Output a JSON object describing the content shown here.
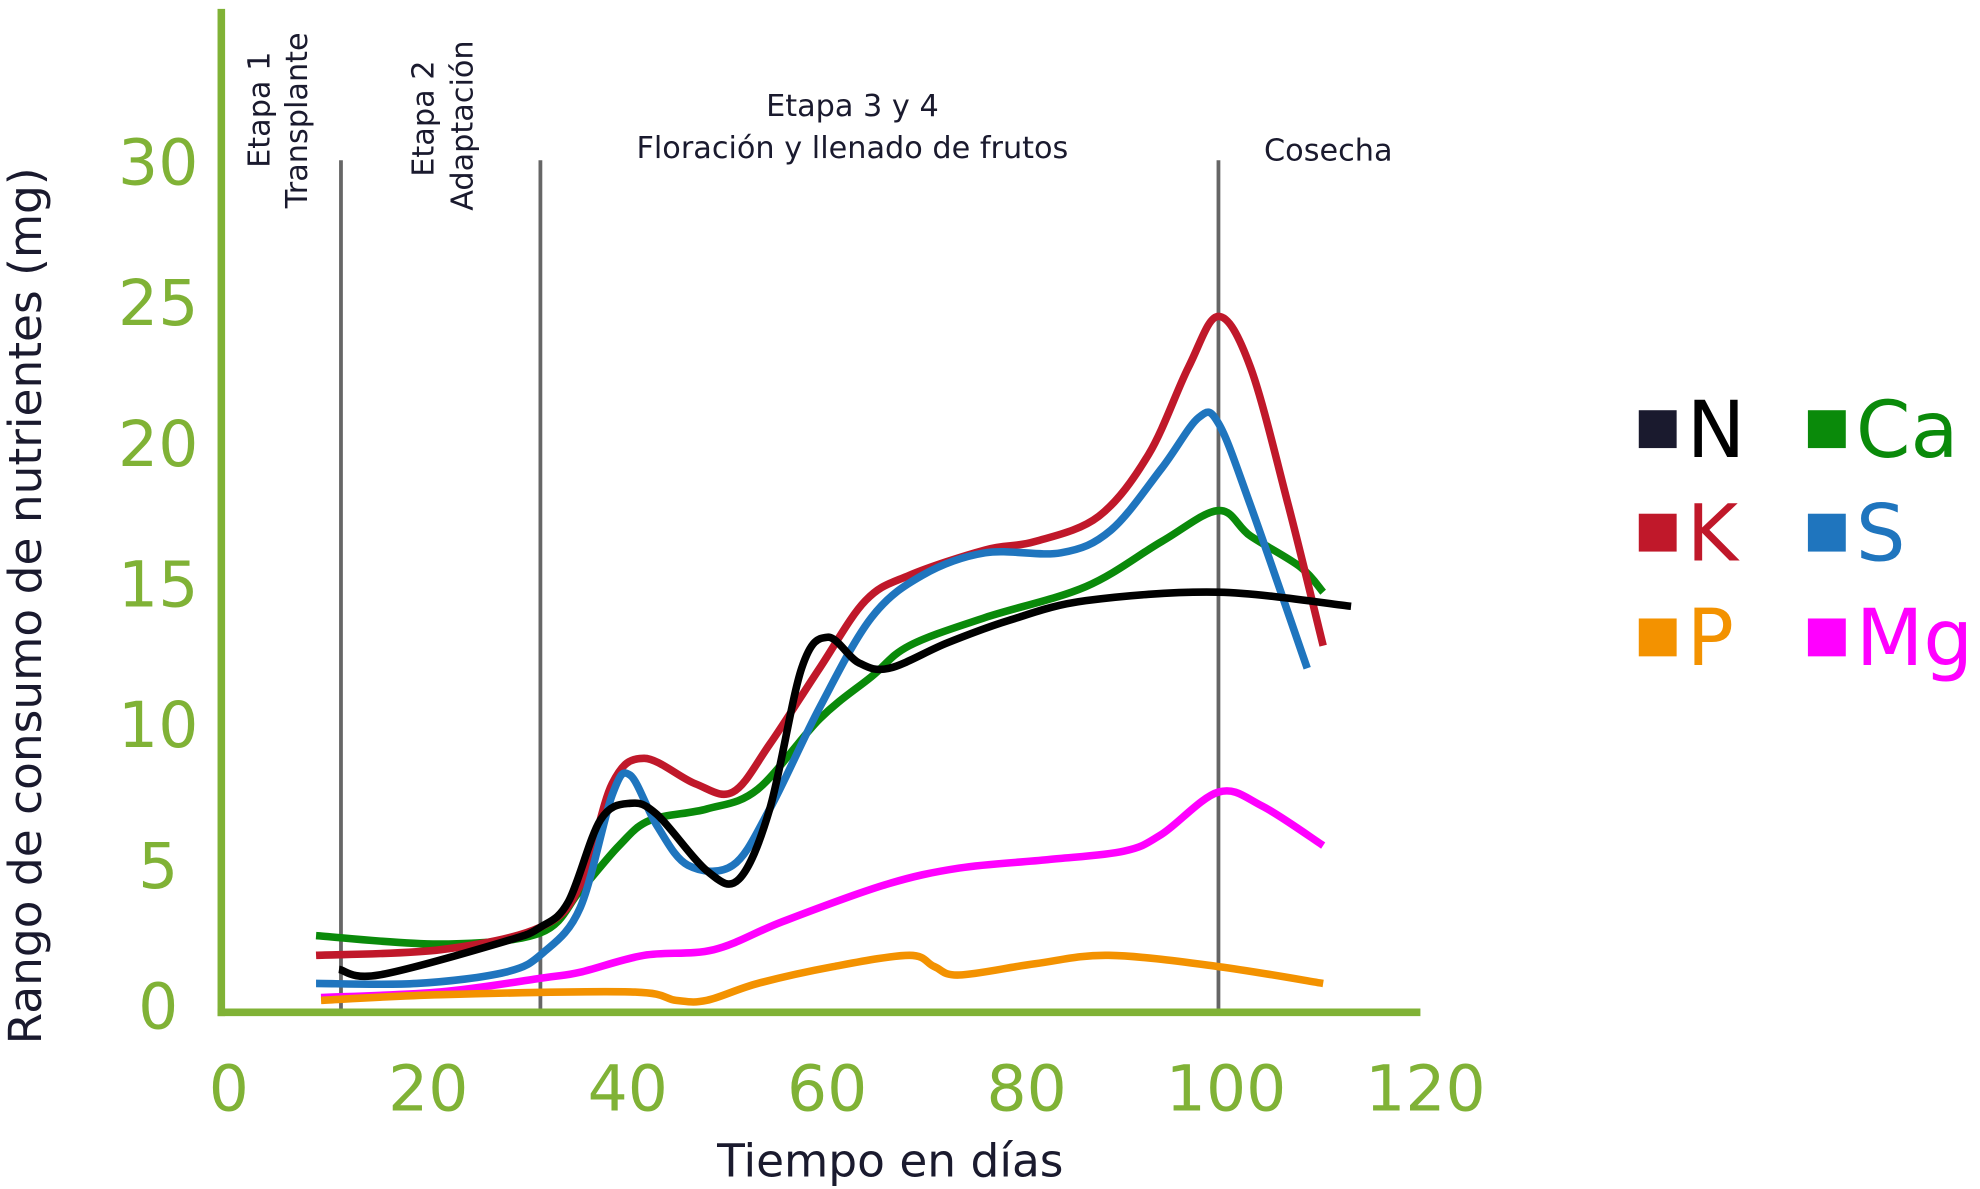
{
  "chart_data": {
    "type": "line",
    "xlabel": "Tiempo en días",
    "ylabel": "Rango de consumo de nutrientes (mg)",
    "xlim": [
      0,
      120
    ],
    "ylim": [
      0,
      30
    ],
    "x_ticks": [
      "0",
      "20",
      "40",
      "60",
      "80",
      "100",
      "120"
    ],
    "y_ticks": [
      "0",
      "5",
      "10",
      "15",
      "20",
      "25",
      "30"
    ],
    "grid": false,
    "legend_position": "right",
    "axis_color": "#80b236",
    "phases": [
      {
        "x": 12,
        "lines": [
          "Etapa 1",
          "Transplante"
        ]
      },
      {
        "x": 32,
        "lines": [
          "Etapa 2",
          "Adaptación"
        ]
      },
      {
        "x": 100,
        "lines": [
          "Etapa 3 y 4",
          "Floración y llenado de frutos"
        ]
      },
      {
        "x": null,
        "lines": [
          "Cosecha"
        ]
      }
    ],
    "series": [
      {
        "name": "N",
        "color": "#000000",
        "points": [
          [
            11.8,
            1.3
          ],
          [
            15.8,
            1.1
          ],
          [
            28.5,
            2.3
          ],
          [
            32,
            2.8
          ],
          [
            34.8,
            3.7
          ],
          [
            38,
            6.6
          ],
          [
            41,
            7.2
          ],
          [
            43.7,
            6.8
          ],
          [
            48.7,
            4.8
          ],
          [
            51.9,
            4.5
          ],
          [
            55,
            7.0
          ],
          [
            58.2,
            12
          ],
          [
            60.8,
            13.1
          ],
          [
            63.9,
            12.2
          ],
          [
            67,
            12
          ],
          [
            72.8,
            12.9
          ],
          [
            79,
            13.7
          ],
          [
            86.7,
            14.4
          ],
          [
            100,
            14.7
          ],
          [
            113.3,
            14.2
          ]
        ]
      },
      {
        "name": "K",
        "color": "#c0182a",
        "points": [
          [
            9.5,
            1.8
          ],
          [
            22,
            2.0
          ],
          [
            32,
            2.8
          ],
          [
            36,
            4.3
          ],
          [
            39.2,
            7.9
          ],
          [
            42.4,
            8.8
          ],
          [
            47.5,
            7.9
          ],
          [
            51.3,
            7.6
          ],
          [
            55,
            9.3
          ],
          [
            60,
            12
          ],
          [
            64.6,
            14.4
          ],
          [
            69,
            15.3
          ],
          [
            76.6,
            16.2
          ],
          [
            81.6,
            16.5
          ],
          [
            88,
            17.4
          ],
          [
            93,
            19.6
          ],
          [
            97,
            22.7
          ],
          [
            100,
            24.5
          ],
          [
            103.2,
            22.7
          ],
          [
            107,
            17.8
          ],
          [
            110.5,
            12.8
          ]
        ]
      },
      {
        "name": "P",
        "color": "#f39200",
        "points": [
          [
            10,
            0.2
          ],
          [
            22,
            0.4
          ],
          [
            41,
            0.5
          ],
          [
            45.6,
            0.2
          ],
          [
            48.7,
            0.2
          ],
          [
            53.8,
            0.8
          ],
          [
            61.4,
            1.4
          ],
          [
            69,
            1.8
          ],
          [
            71.5,
            1.4
          ],
          [
            74,
            1.1
          ],
          [
            81.6,
            1.5
          ],
          [
            89,
            1.8
          ],
          [
            100,
            1.4
          ],
          [
            110.5,
            0.8
          ]
        ]
      },
      {
        "name": "Ca",
        "color": "#0a8a0a",
        "points": [
          [
            9.5,
            2.5
          ],
          [
            22,
            2.2
          ],
          [
            32,
            2.6
          ],
          [
            36,
            4.1
          ],
          [
            39.9,
            5.7
          ],
          [
            43,
            6.6
          ],
          [
            48.7,
            7.0
          ],
          [
            53.8,
            7.7
          ],
          [
            60,
            10.2
          ],
          [
            65.2,
            11.7
          ],
          [
            69,
            12.8
          ],
          [
            76.6,
            13.8
          ],
          [
            86.7,
            14.9
          ],
          [
            94.3,
            16.5
          ],
          [
            100,
            17.6
          ],
          [
            103.2,
            16.7
          ],
          [
            108.2,
            15.6
          ],
          [
            110.5,
            14.7
          ]
        ]
      },
      {
        "name": "S",
        "color": "#1f75be",
        "points": [
          [
            9.5,
            0.8
          ],
          [
            19.6,
            0.8
          ],
          [
            28.5,
            1.2
          ],
          [
            32.3,
            1.9
          ],
          [
            36,
            3.5
          ],
          [
            39.2,
            7.5
          ],
          [
            41,
            8.2
          ],
          [
            43.7,
            6.4
          ],
          [
            46.8,
            5.0
          ],
          [
            51.3,
            5.0
          ],
          [
            55,
            7.0
          ],
          [
            60,
            10.6
          ],
          [
            65.2,
            13.8
          ],
          [
            70.3,
            15.3
          ],
          [
            76.6,
            16.1
          ],
          [
            84.2,
            16.1
          ],
          [
            89.2,
            16.9
          ],
          [
            94.3,
            19.1
          ],
          [
            98,
            20.9
          ],
          [
            100,
            20.7
          ],
          [
            103.2,
            17.8
          ],
          [
            108.9,
            12
          ]
        ]
      },
      {
        "name": "Mg",
        "color": "#ff00ff",
        "points": [
          [
            10,
            0.3
          ],
          [
            22,
            0.5
          ],
          [
            32.3,
            1.0
          ],
          [
            36,
            1.2
          ],
          [
            42.4,
            1.8
          ],
          [
            49.4,
            2.0
          ],
          [
            56.3,
            3.0
          ],
          [
            66.5,
            4.3
          ],
          [
            74,
            4.9
          ],
          [
            82.9,
            5.2
          ],
          [
            90.5,
            5.5
          ],
          [
            94.3,
            6.1
          ],
          [
            100,
            7.6
          ],
          [
            104.4,
            7.1
          ],
          [
            110.5,
            5.7
          ]
        ]
      }
    ]
  }
}
